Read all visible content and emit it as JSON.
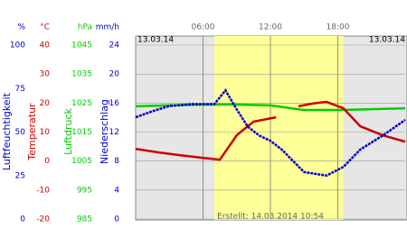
{
  "chart_data": {
    "type": "line",
    "date_left": "13.03.14",
    "date_right": "13.03.14",
    "footer": "Erstellt: 14.03.2014 10:54",
    "xlim": [
      0,
      24
    ],
    "xticks": [
      {
        "value": 6,
        "label": "06:00"
      },
      {
        "value": 12,
        "label": "12:00"
      },
      {
        "value": 18,
        "label": "18:00"
      }
    ],
    "daylight": [
      7,
      18.5
    ],
    "axes": [
      {
        "unit": "%",
        "title": "Luftfeuchtigkeit",
        "color": "#0000cc",
        "ylim": [
          0,
          100
        ],
        "yticks": [
          0,
          25,
          50,
          75,
          100
        ]
      },
      {
        "unit": "°C",
        "title": "Temperatur",
        "color": "#cc0000",
        "ylim": [
          -20,
          40
        ],
        "yticks": [
          -20,
          -10,
          0,
          10,
          20,
          30,
          40
        ]
      },
      {
        "unit": "hPa",
        "title": "Luftdruck",
        "color": "#00cc00",
        "ylim": [
          985,
          1045
        ],
        "yticks": [
          985,
          995,
          1005,
          1015,
          1025,
          1035,
          1045
        ]
      },
      {
        "unit": "mm/h",
        "title": "Niederschlag",
        "color": "#0000cc",
        "ylim": [
          0,
          24
        ],
        "yticks": [
          0,
          4,
          8,
          12,
          16,
          20,
          24
        ]
      }
    ],
    "series": [
      {
        "axis": 2,
        "color": "#00cc00",
        "x": [
          0,
          3,
          6,
          9,
          12,
          15,
          18,
          21,
          24
        ],
        "values": [
          1023.9,
          1024.2,
          1024.5,
          1024.5,
          1024.2,
          1022.6,
          1022.6,
          1022.9,
          1023.2
        ]
      },
      {
        "axis": 1,
        "color": "#cc0000",
        "x": [
          0,
          2,
          4,
          6,
          7.5,
          9,
          10.5,
          12.5,
          13,
          14.5,
          16,
          17,
          18.5,
          20,
          22,
          24
        ],
        "values": [
          4.2,
          3,
          2,
          1.1,
          0.5,
          8.9,
          13.6,
          15.1,
          null,
          18.9,
          20,
          20.4,
          18.2,
          12,
          8.9,
          6.7
        ]
      },
      {
        "axis": 0,
        "color": "#0000cc",
        "x": [
          0,
          1.5,
          3,
          5,
          7,
          8,
          9,
          10,
          11,
          12,
          13,
          15,
          17,
          18.5,
          20,
          22,
          24
        ],
        "values": [
          58.5,
          62,
          65,
          66,
          66,
          74,
          63,
          53,
          48,
          45,
          40,
          27,
          25,
          30,
          40,
          48,
          57
        ]
      }
    ]
  }
}
